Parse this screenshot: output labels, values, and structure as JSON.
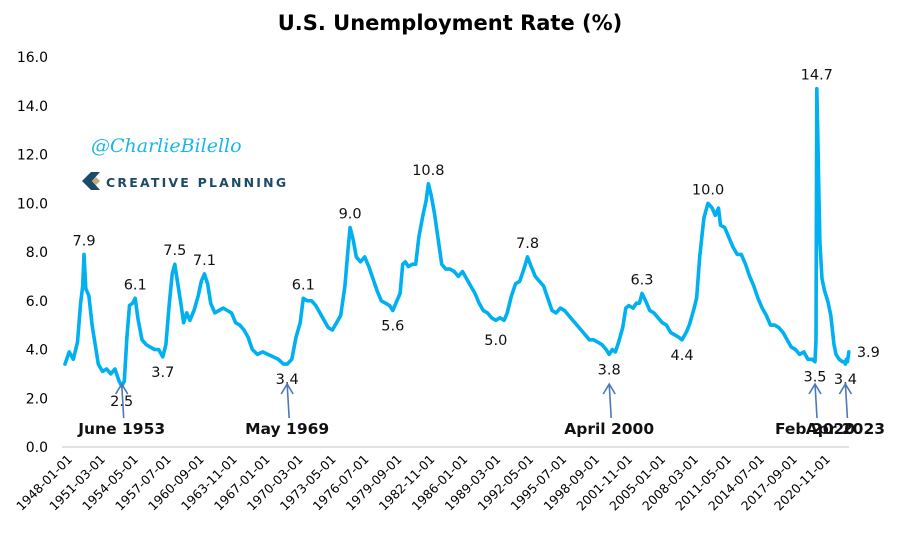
{
  "chart_data": {
    "type": "line",
    "title": "U.S. Unemployment Rate (%)",
    "xlabel": "",
    "ylabel": "",
    "ylim": [
      0,
      16
    ],
    "yticks": [
      "0.0",
      "2.0",
      "4.0",
      "6.0",
      "8.0",
      "10.0",
      "12.0",
      "14.0",
      "16.0"
    ],
    "xlim": [
      "1948-01-01",
      "2023-04-01"
    ],
    "xticks": [
      "1948-01-01",
      "1951-03-01",
      "1954-05-01",
      "1957-07-01",
      "1960-09-01",
      "1963-11-01",
      "1967-01-01",
      "1970-03-01",
      "1973-05-01",
      "1976-07-01",
      "1979-09-01",
      "1982-11-01",
      "1986-01-01",
      "1989-03-01",
      "1992-05-01",
      "1995-07-01",
      "1998-09-01",
      "2001-11-01",
      "2005-01-01",
      "2008-03-01",
      "2011-05-01",
      "2014-07-01",
      "2017-09-01",
      "2020-11-01"
    ],
    "grid": false,
    "legend": "none",
    "line_color": "#00b0f0",
    "series": [
      {
        "name": "Unemployment Rate",
        "points": [
          [
            "1948.00",
            3.4
          ],
          [
            "1948.40",
            3.9
          ],
          [
            "1948.80",
            3.6
          ],
          [
            "1949.20",
            4.3
          ],
          [
            "1949.50",
            5.9
          ],
          [
            "1949.70",
            6.6
          ],
          [
            "1949.83",
            7.9
          ],
          [
            "1950.00",
            6.5
          ],
          [
            "1950.30",
            6.2
          ],
          [
            "1950.60",
            5.0
          ],
          [
            "1950.90",
            4.2
          ],
          [
            "1951.20",
            3.4
          ],
          [
            "1951.60",
            3.1
          ],
          [
            "1952.00",
            3.2
          ],
          [
            "1952.40",
            3.0
          ],
          [
            "1952.80",
            3.2
          ],
          [
            "1953.20",
            2.7
          ],
          [
            "1953.45",
            2.5
          ],
          [
            "1953.70",
            2.7
          ],
          [
            "1953.95",
            4.5
          ],
          [
            "1954.20",
            5.8
          ],
          [
            "1954.50",
            5.9
          ],
          [
            "1954.75",
            6.1
          ],
          [
            "1955.00",
            5.3
          ],
          [
            "1955.40",
            4.4
          ],
          [
            "1955.80",
            4.2
          ],
          [
            "1956.20",
            4.1
          ],
          [
            "1956.60",
            4.0
          ],
          [
            "1957.00",
            4.0
          ],
          [
            "1957.40",
            3.7
          ],
          [
            "1957.70",
            4.2
          ],
          [
            "1958.00",
            5.8
          ],
          [
            "1958.30",
            7.1
          ],
          [
            "1958.55",
            7.5
          ],
          [
            "1958.80",
            6.8
          ],
          [
            "1959.10",
            6.0
          ],
          [
            "1959.40",
            5.1
          ],
          [
            "1959.70",
            5.5
          ],
          [
            "1960.00",
            5.2
          ],
          [
            "1960.40",
            5.6
          ],
          [
            "1960.80",
            6.2
          ],
          [
            "1961.10",
            6.8
          ],
          [
            "1961.40",
            7.1
          ],
          [
            "1961.70",
            6.7
          ],
          [
            "1962.00",
            5.9
          ],
          [
            "1962.40",
            5.5
          ],
          [
            "1962.80",
            5.6
          ],
          [
            "1963.20",
            5.7
          ],
          [
            "1963.60",
            5.6
          ],
          [
            "1964.00",
            5.5
          ],
          [
            "1964.40",
            5.1
          ],
          [
            "1964.80",
            5.0
          ],
          [
            "1965.20",
            4.8
          ],
          [
            "1965.60",
            4.5
          ],
          [
            "1966.00",
            4.0
          ],
          [
            "1966.50",
            3.8
          ],
          [
            "1967.00",
            3.9
          ],
          [
            "1967.50",
            3.8
          ],
          [
            "1968.00",
            3.7
          ],
          [
            "1968.50",
            3.6
          ],
          [
            "1969.00",
            3.4
          ],
          [
            "1969.35",
            3.4
          ],
          [
            "1969.80",
            3.6
          ],
          [
            "1970.20",
            4.5
          ],
          [
            "1970.60",
            5.1
          ],
          [
            "1970.90",
            6.1
          ],
          [
            "1971.30",
            6.0
          ],
          [
            "1971.70",
            6.0
          ],
          [
            "1972.10",
            5.8
          ],
          [
            "1972.50",
            5.5
          ],
          [
            "1972.90",
            5.2
          ],
          [
            "1973.30",
            4.9
          ],
          [
            "1973.70",
            4.8
          ],
          [
            "1974.10",
            5.1
          ],
          [
            "1974.50",
            5.4
          ],
          [
            "1974.90",
            6.6
          ],
          [
            "1975.20",
            8.1
          ],
          [
            "1975.40",
            9.0
          ],
          [
            "1975.70",
            8.5
          ],
          [
            "1976.00",
            7.8
          ],
          [
            "1976.40",
            7.6
          ],
          [
            "1976.80",
            7.8
          ],
          [
            "1977.20",
            7.4
          ],
          [
            "1977.60",
            6.9
          ],
          [
            "1978.00",
            6.4
          ],
          [
            "1978.40",
            6.0
          ],
          [
            "1978.80",
            5.9
          ],
          [
            "1979.20",
            5.8
          ],
          [
            "1979.50",
            5.6
          ],
          [
            "1979.90",
            6.0
          ],
          [
            "1980.20",
            6.3
          ],
          [
            "1980.45",
            7.5
          ],
          [
            "1980.70",
            7.6
          ],
          [
            "1981.00",
            7.4
          ],
          [
            "1981.40",
            7.5
          ],
          [
            "1981.70",
            7.5
          ],
          [
            "1982.00",
            8.6
          ],
          [
            "1982.40",
            9.5
          ],
          [
            "1982.70",
            10.1
          ],
          [
            "1982.92",
            10.8
          ],
          [
            "1983.20",
            10.3
          ],
          [
            "1983.50",
            9.6
          ],
          [
            "1983.90",
            8.4
          ],
          [
            "1984.20",
            7.5
          ],
          [
            "1984.60",
            7.3
          ],
          [
            "1985.00",
            7.3
          ],
          [
            "1985.40",
            7.2
          ],
          [
            "1985.80",
            7.0
          ],
          [
            "1986.20",
            7.2
          ],
          [
            "1986.60",
            6.9
          ],
          [
            "1987.00",
            6.6
          ],
          [
            "1987.40",
            6.3
          ],
          [
            "1987.80",
            5.9
          ],
          [
            "1988.20",
            5.6
          ],
          [
            "1988.60",
            5.5
          ],
          [
            "1989.00",
            5.3
          ],
          [
            "1989.40",
            5.2
          ],
          [
            "1989.80",
            5.3
          ],
          [
            "1990.20",
            5.2
          ],
          [
            "1990.50",
            5.5
          ],
          [
            "1990.90",
            6.2
          ],
          [
            "1991.30",
            6.7
          ],
          [
            "1991.70",
            6.8
          ],
          [
            "1992.10",
            7.3
          ],
          [
            "1992.45",
            7.8
          ],
          [
            "1992.80",
            7.4
          ],
          [
            "1993.20",
            7.0
          ],
          [
            "1993.60",
            6.8
          ],
          [
            "1994.00",
            6.6
          ],
          [
            "1994.40",
            6.1
          ],
          [
            "1994.80",
            5.6
          ],
          [
            "1995.20",
            5.5
          ],
          [
            "1995.60",
            5.7
          ],
          [
            "1996.00",
            5.6
          ],
          [
            "1996.40",
            5.4
          ],
          [
            "1996.80",
            5.2
          ],
          [
            "1997.20",
            5.0
          ],
          [
            "1997.60",
            4.8
          ],
          [
            "1998.00",
            4.6
          ],
          [
            "1998.40",
            4.4
          ],
          [
            "1998.80",
            4.4
          ],
          [
            "1999.20",
            4.3
          ],
          [
            "1999.60",
            4.2
          ],
          [
            "2000.00",
            4.0
          ],
          [
            "2000.30",
            3.8
          ],
          [
            "2000.60",
            4.0
          ],
          [
            "2000.90",
            3.9
          ],
          [
            "2001.20",
            4.3
          ],
          [
            "2001.60",
            4.9
          ],
          [
            "2001.90",
            5.7
          ],
          [
            "2002.20",
            5.8
          ],
          [
            "2002.60",
            5.7
          ],
          [
            "2002.90",
            5.9
          ],
          [
            "2003.20",
            5.9
          ],
          [
            "2003.45",
            6.3
          ],
          [
            "2003.80",
            6.0
          ],
          [
            "2004.20",
            5.6
          ],
          [
            "2004.60",
            5.5
          ],
          [
            "2005.00",
            5.3
          ],
          [
            "2005.40",
            5.1
          ],
          [
            "2005.80",
            5.0
          ],
          [
            "2006.20",
            4.7
          ],
          [
            "2006.60",
            4.6
          ],
          [
            "2007.00",
            4.5
          ],
          [
            "2007.30",
            4.4
          ],
          [
            "2007.70",
            4.7
          ],
          [
            "2008.00",
            5.0
          ],
          [
            "2008.40",
            5.6
          ],
          [
            "2008.70",
            6.1
          ],
          [
            "2009.00",
            7.8
          ],
          [
            "2009.40",
            9.4
          ],
          [
            "2009.80",
            10.0
          ],
          [
            "2010.20",
            9.8
          ],
          [
            "2010.50",
            9.5
          ],
          [
            "2010.80",
            9.8
          ],
          [
            "2011.00",
            9.1
          ],
          [
            "2011.40",
            9.0
          ],
          [
            "2011.80",
            8.6
          ],
          [
            "2012.20",
            8.2
          ],
          [
            "2012.60",
            7.9
          ],
          [
            "2013.00",
            7.9
          ],
          [
            "2013.40",
            7.5
          ],
          [
            "2013.80",
            7.0
          ],
          [
            "2014.20",
            6.6
          ],
          [
            "2014.60",
            6.1
          ],
          [
            "2015.00",
            5.7
          ],
          [
            "2015.40",
            5.4
          ],
          [
            "2015.80",
            5.0
          ],
          [
            "2016.20",
            5.0
          ],
          [
            "2016.60",
            4.9
          ],
          [
            "2017.00",
            4.7
          ],
          [
            "2017.40",
            4.4
          ],
          [
            "2017.80",
            4.1
          ],
          [
            "2018.20",
            4.0
          ],
          [
            "2018.60",
            3.8
          ],
          [
            "2019.00",
            3.9
          ],
          [
            "2019.40",
            3.6
          ],
          [
            "2019.80",
            3.6
          ],
          [
            "2020.08",
            3.5
          ],
          [
            "2020.17",
            4.4
          ],
          [
            "2020.25",
            14.7
          ],
          [
            "2020.33",
            13.2
          ],
          [
            "2020.42",
            11.0
          ],
          [
            "2020.55",
            8.4
          ],
          [
            "2020.75",
            6.9
          ],
          [
            "2021.00",
            6.4
          ],
          [
            "2021.30",
            6.0
          ],
          [
            "2021.60",
            5.4
          ],
          [
            "2021.90",
            4.2
          ],
          [
            "2022.10",
            3.8
          ],
          [
            "2022.40",
            3.6
          ],
          [
            "2022.70",
            3.5
          ],
          [
            "2022.90",
            3.5
          ],
          [
            "2023.00",
            3.4
          ],
          [
            "2023.10",
            3.6
          ],
          [
            "2023.20",
            3.5
          ],
          [
            "2023.33",
            3.9
          ]
        ]
      }
    ],
    "data_labels": [
      {
        "x": "1949.83",
        "y": 7.9,
        "text": "7.9",
        "pos": "above"
      },
      {
        "x": "1953.45",
        "y": 2.5,
        "text": "2.5",
        "pos": "below"
      },
      {
        "x": "1954.75",
        "y": 6.1,
        "text": "6.1",
        "pos": "above"
      },
      {
        "x": "1957.40",
        "y": 3.7,
        "text": "3.7",
        "pos": "below"
      },
      {
        "x": "1958.55",
        "y": 7.5,
        "text": "7.5",
        "pos": "above"
      },
      {
        "x": "1961.40",
        "y": 7.1,
        "text": "7.1",
        "pos": "above"
      },
      {
        "x": "1969.35",
        "y": 3.4,
        "text": "3.4",
        "pos": "below"
      },
      {
        "x": "1970.90",
        "y": 6.1,
        "text": "6.1",
        "pos": "above"
      },
      {
        "x": "1975.40",
        "y": 9.0,
        "text": "9.0",
        "pos": "above"
      },
      {
        "x": "1979.50",
        "y": 5.6,
        "text": "5.6",
        "pos": "below"
      },
      {
        "x": "1982.92",
        "y": 10.8,
        "text": "10.8",
        "pos": "above"
      },
      {
        "x": "1989.40",
        "y": 5.0,
        "text": "5.0",
        "pos": "below"
      },
      {
        "x": "1992.45",
        "y": 7.8,
        "text": "7.8",
        "pos": "above"
      },
      {
        "x": "2000.30",
        "y": 3.8,
        "text": "3.8",
        "pos": "below"
      },
      {
        "x": "2003.45",
        "y": 6.3,
        "text": "6.3",
        "pos": "above"
      },
      {
        "x": "2007.30",
        "y": 4.4,
        "text": "4.4",
        "pos": "below"
      },
      {
        "x": "2009.80",
        "y": 10.0,
        "text": "10.0",
        "pos": "above"
      },
      {
        "x": "2020.08",
        "y": 3.5,
        "text": "3.5",
        "pos": "below"
      },
      {
        "x": "2020.25",
        "y": 14.7,
        "text": "14.7",
        "pos": "above"
      },
      {
        "x": "2023.00",
        "y": 3.4,
        "text": "3.4",
        "pos": "below"
      },
      {
        "x": "2023.33",
        "y": 3.9,
        "text": "3.9",
        "pos": "right"
      }
    ],
    "annotations": [
      {
        "text": "June 1953",
        "x": "1953.45"
      },
      {
        "text": "May 1969",
        "x": "1969.35"
      },
      {
        "text": "April 2000",
        "x": "2000.30"
      },
      {
        "text": "Feb 2020",
        "x": "2020.08"
      },
      {
        "text": "Apr 2023",
        "x": "2023.00"
      }
    ]
  },
  "branding": {
    "handle": "@CharlieBilello",
    "company": "CREATIVE PLANNING",
    "brand_color": "#1d4a66",
    "accent_color": "#c9a97a"
  }
}
